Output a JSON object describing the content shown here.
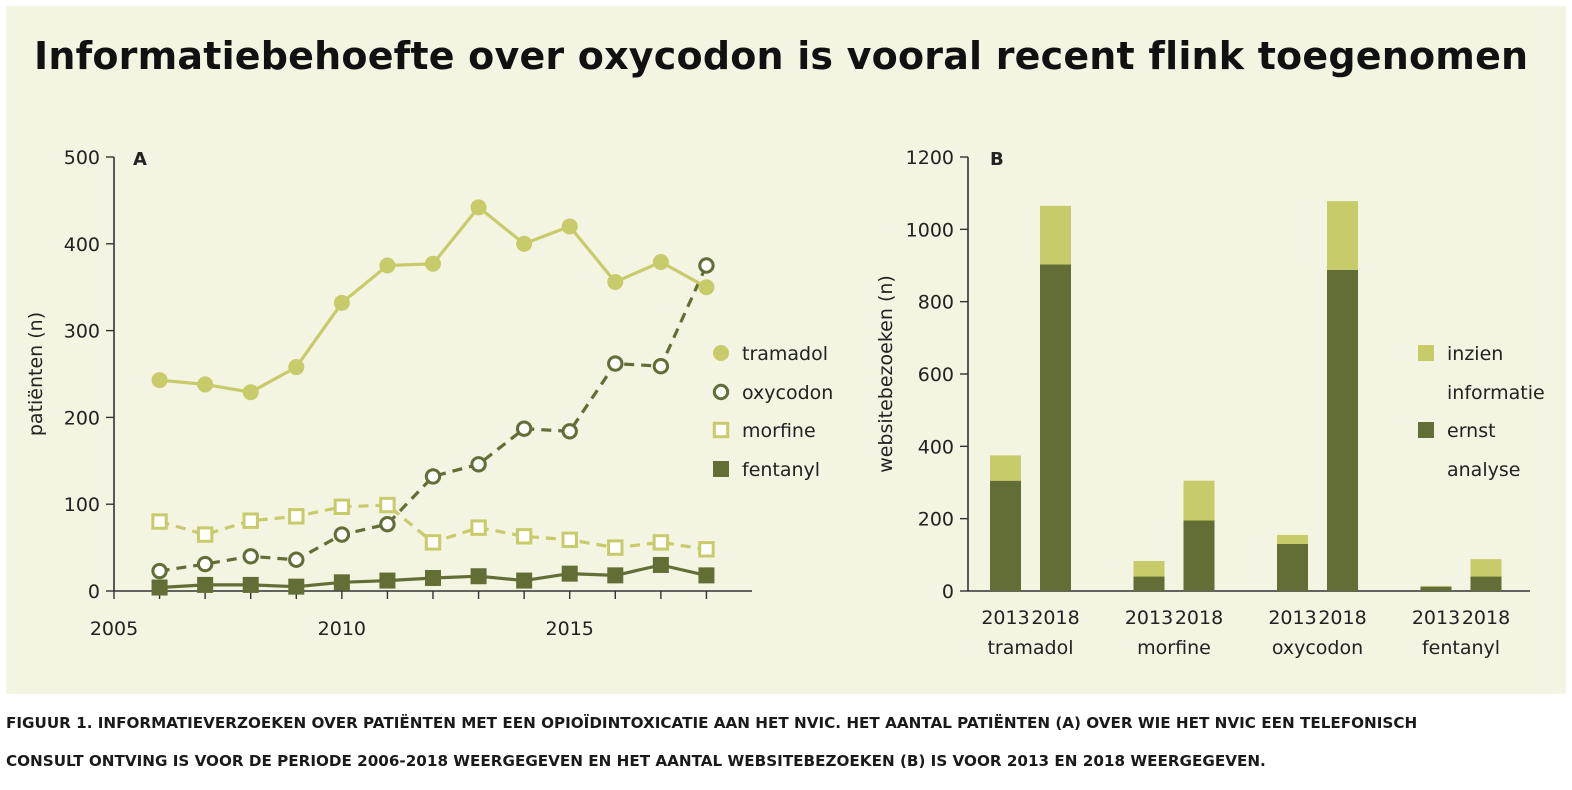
{
  "title": "Informatiebehoefte over oxycodon is vooral recent flink toegenomen",
  "caption": {
    "line1": "FIGUUR 1. INFORMATIEVERZOEKEN OVER PATIËNTEN MET EEN OPIOÏDINTOXICATIE AAN HET NVIC. HET AANTAL PATIËNTEN (A) OVER WIE HET NVIC EEN TELEFONISCH",
    "line2": "CONSULT ONTVING IS VOOR DE PERIODE 2006-2018 WEERGEGEVEN EN HET AANTAL WEBSITEBEZOEKEN (B) IS VOOR 2013 EN 2018 WEERGEGEVEN."
  },
  "colors": {
    "background": "#f3f4e2",
    "light": "#c8cb6a",
    "dark": "#626e36",
    "axis": "#333333"
  },
  "chart_data": [
    {
      "type": "line",
      "panel_label": "A",
      "ylabel": "patiënten (n)",
      "xlabel": "",
      "xlim": [
        2005,
        2019
      ],
      "ylim": [
        0,
        500
      ],
      "x_ticks": [
        2005,
        2010,
        2015
      ],
      "y_ticks": [
        0,
        100,
        200,
        300,
        400,
        500
      ],
      "x": [
        2006,
        2007,
        2008,
        2009,
        2010,
        2011,
        2012,
        2013,
        2014,
        2015,
        2016,
        2017,
        2018
      ],
      "legend_position": "right",
      "series": [
        {
          "name": "tramadol",
          "color": "light",
          "marker": "filled-circle",
          "dash": "solid",
          "values": [
            243,
            238,
            229,
            258,
            332,
            375,
            377,
            442,
            400,
            420,
            356,
            379,
            350
          ]
        },
        {
          "name": "oxycodon",
          "color": "dark",
          "marker": "open-circle",
          "dash": "dashed",
          "values": [
            23,
            31,
            40,
            36,
            65,
            77,
            132,
            146,
            187,
            184,
            262,
            259,
            375
          ]
        },
        {
          "name": "morfine",
          "color": "light",
          "marker": "open-square",
          "dash": "dashed",
          "values": [
            80,
            65,
            81,
            86,
            97,
            99,
            56,
            73,
            63,
            59,
            50,
            56,
            48
          ]
        },
        {
          "name": "fentanyl",
          "color": "dark",
          "marker": "filled-square",
          "dash": "solid",
          "values": [
            4,
            7,
            7,
            5,
            10,
            12,
            15,
            17,
            12,
            20,
            18,
            30,
            18
          ]
        }
      ]
    },
    {
      "type": "bar",
      "stacked": true,
      "panel_label": "B",
      "ylabel": "websitebezoeken (n)",
      "xlabel": "",
      "ylim": [
        0,
        1200
      ],
      "y_ticks": [
        0,
        200,
        400,
        600,
        800,
        1000,
        1200
      ],
      "legend_position": "right",
      "groups": [
        {
          "name": "tramadol",
          "bars": [
            {
              "year": "2013",
              "ernst": 305,
              "inzien": 70
            },
            {
              "year": "2018",
              "ernst": 903,
              "inzien": 162
            }
          ]
        },
        {
          "name": "morfine",
          "bars": [
            {
              "year": "2013",
              "ernst": 40,
              "inzien": 43
            },
            {
              "year": "2018",
              "ernst": 195,
              "inzien": 110
            }
          ]
        },
        {
          "name": "oxycodon",
          "bars": [
            {
              "year": "2013",
              "ernst": 130,
              "inzien": 25
            },
            {
              "year": "2018",
              "ernst": 888,
              "inzien": 190
            }
          ]
        },
        {
          "name": "fentanyl",
          "bars": [
            {
              "year": "2013",
              "ernst": 12,
              "inzien": 2
            },
            {
              "year": "2018",
              "ernst": 40,
              "inzien": 48
            }
          ]
        }
      ],
      "series": [
        {
          "key": "inzien",
          "name": "inzien informatie",
          "lines": [
            "inzien",
            "informatie"
          ],
          "color": "light"
        },
        {
          "key": "ernst",
          "name": "ernst analyse",
          "lines": [
            "ernst",
            "analyse"
          ],
          "color": "dark"
        }
      ]
    }
  ]
}
